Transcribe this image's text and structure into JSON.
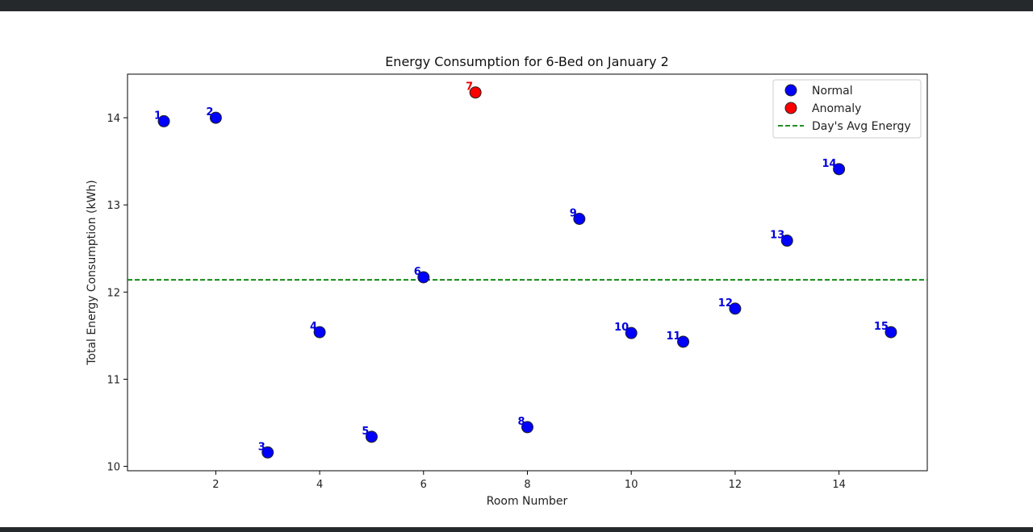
{
  "chart_data": {
    "type": "scatter",
    "title": "Energy Consumption for 6-Bed on January 2",
    "xlabel": "Room Number",
    "ylabel": "Total Energy Consumption (kWh)",
    "xlim": [
      0.3,
      15.7
    ],
    "ylim": [
      9.95,
      14.5
    ],
    "xticks": [
      2,
      4,
      6,
      8,
      10,
      12,
      14
    ],
    "yticks": [
      10,
      11,
      12,
      13,
      14
    ],
    "grid": false,
    "legend_position": "top-right",
    "colors": {
      "normal": "#0000ff",
      "anomaly": "#ff0000",
      "average": "#008000",
      "normal_label": "#0000dd",
      "anomaly_label": "#ee0000"
    },
    "average_energy": 12.14,
    "points": [
      {
        "label": "1",
        "x": 1,
        "y": 13.96,
        "type": "normal"
      },
      {
        "label": "2",
        "x": 2,
        "y": 14.0,
        "type": "normal"
      },
      {
        "label": "3",
        "x": 3,
        "y": 10.16,
        "type": "normal"
      },
      {
        "label": "4",
        "x": 4,
        "y": 11.54,
        "type": "normal"
      },
      {
        "label": "5",
        "x": 5,
        "y": 10.34,
        "type": "normal"
      },
      {
        "label": "6",
        "x": 6,
        "y": 12.17,
        "type": "normal"
      },
      {
        "label": "7",
        "x": 7,
        "y": 14.29,
        "type": "anomaly"
      },
      {
        "label": "8",
        "x": 8,
        "y": 10.45,
        "type": "normal"
      },
      {
        "label": "9",
        "x": 9,
        "y": 12.84,
        "type": "normal"
      },
      {
        "label": "10",
        "x": 10,
        "y": 11.53,
        "type": "normal"
      },
      {
        "label": "11",
        "x": 11,
        "y": 11.43,
        "type": "normal"
      },
      {
        "label": "12",
        "x": 12,
        "y": 11.81,
        "type": "normal"
      },
      {
        "label": "13",
        "x": 13,
        "y": 12.59,
        "type": "normal"
      },
      {
        "label": "14",
        "x": 14,
        "y": 13.41,
        "type": "normal"
      },
      {
        "label": "15",
        "x": 15,
        "y": 11.54,
        "type": "normal"
      }
    ],
    "legend": [
      {
        "label": "Normal",
        "kind": "normal"
      },
      {
        "label": "Anomaly",
        "kind": "anomaly"
      },
      {
        "label": "Day's Avg Energy",
        "kind": "average"
      }
    ]
  }
}
